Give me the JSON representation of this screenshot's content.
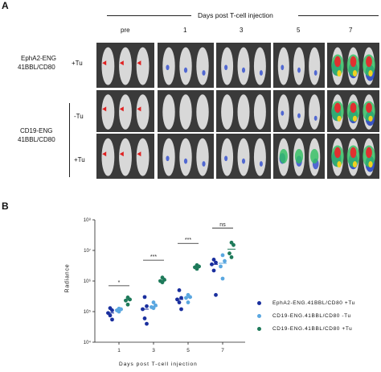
{
  "panel_a": {
    "letter": "A",
    "header": "Days post T-cell injection",
    "columns": [
      "pre",
      "1",
      "3",
      "5",
      "7"
    ],
    "group1": {
      "name_line1": "EphA2-ENG",
      "name_line2": "41BBL/CD80",
      "condition": "+Tu"
    },
    "group2": {
      "name_line1": "CD19-ENG",
      "name_line2": "41BBL/CD80",
      "condition_a": "-Tu",
      "condition_b": "+Tu"
    }
  },
  "panel_b": {
    "letter": "B",
    "ylabel": "Radiance",
    "xlabel": "Days post T-cell injection",
    "y_tick_labels": [
      "10⁴",
      "10⁵",
      "10⁶",
      "10⁷",
      "10⁸"
    ],
    "x_tick_labels": [
      "1",
      "3",
      "5",
      "7"
    ],
    "significance": [
      "*",
      "***",
      "***",
      "ns"
    ],
    "legend": [
      {
        "label": "EphA2-ENG.41BBL/CD80 +Tu",
        "color": "#1a2f9e"
      },
      {
        "label": "CD19-ENG.41BBL/CD80 -Tu",
        "color": "#5aa7e0"
      },
      {
        "label": "CD19-ENG.41BBL/CD80 +Tu",
        "color": "#1e7a5a"
      }
    ]
  },
  "chart_data": {
    "type": "scatter",
    "x": [
      "1",
      "3",
      "5",
      "7"
    ],
    "xlabel": "Days post T-cell injection",
    "ylabel": "Radiance",
    "yscale": "log",
    "ylim": [
      10000,
      100000000
    ],
    "series": [
      {
        "name": "EphA2-ENG.41BBL/CD80 +Tu",
        "color": "#1a2f9e",
        "points": [
          [
            1,
            130000
          ],
          [
            1,
            110000
          ],
          [
            1,
            90000
          ],
          [
            1,
            75000
          ],
          [
            1,
            55000
          ],
          [
            3,
            300000
          ],
          [
            3,
            150000
          ],
          [
            3,
            120000
          ],
          [
            3,
            60000
          ],
          [
            3,
            40000
          ],
          [
            5,
            500000
          ],
          [
            5,
            280000
          ],
          [
            5,
            250000
          ],
          [
            5,
            200000
          ],
          [
            5,
            120000
          ],
          [
            7,
            5000000
          ],
          [
            7,
            4000000
          ],
          [
            7,
            3500000
          ],
          [
            7,
            2200000
          ],
          [
            7,
            350000
          ]
        ],
        "medians": [
          90000,
          120000,
          250000,
          3500000
        ]
      },
      {
        "name": "CD19-ENG.41BBL/CD80 -Tu",
        "color": "#5aa7e0",
        "points": [
          [
            1,
            125000
          ],
          [
            1,
            120000
          ],
          [
            1,
            110000
          ],
          [
            1,
            100000
          ],
          [
            3,
            200000
          ],
          [
            3,
            160000
          ],
          [
            3,
            140000
          ],
          [
            3,
            130000
          ],
          [
            5,
            350000
          ],
          [
            5,
            300000
          ],
          [
            5,
            280000
          ],
          [
            5,
            200000
          ],
          [
            7,
            7000000
          ],
          [
            7,
            4500000
          ],
          [
            7,
            3000000
          ],
          [
            7,
            1200000
          ]
        ],
        "medians": [
          115000,
          150000,
          290000,
          3800000
        ]
      },
      {
        "name": "CD19-ENG.41BBL/CD80 +Tu",
        "color": "#1e7a5a",
        "points": [
          [
            1,
            290000
          ],
          [
            1,
            250000
          ],
          [
            1,
            230000
          ],
          [
            1,
            170000
          ],
          [
            3,
            1300000
          ],
          [
            3,
            1100000
          ],
          [
            3,
            1000000
          ],
          [
            3,
            900000
          ],
          [
            5,
            3300000
          ],
          [
            5,
            3000000
          ],
          [
            5,
            2800000
          ],
          [
            5,
            2500000
          ],
          [
            7,
            18000000
          ],
          [
            7,
            15000000
          ],
          [
            7,
            8000000
          ],
          [
            7,
            6000000
          ]
        ],
        "medians": [
          240000,
          1050000,
          2900000,
          11000000
        ]
      }
    ]
  }
}
